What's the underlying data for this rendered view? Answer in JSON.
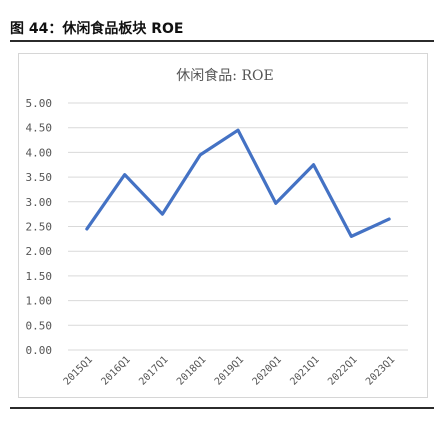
{
  "figure": {
    "label": "图 44：休闲食品板块 ROE"
  },
  "colors": {
    "line": "#4472c4",
    "grid": "#d9d9d9",
    "axis_text": "#555555",
    "rule": "#2b2b2b"
  },
  "chart_data": {
    "type": "line",
    "title": "休闲食品: ROE",
    "xlabel": "",
    "ylabel": "",
    "categories": [
      "2015Q1",
      "2016Q1",
      "2017Q1",
      "2018Q1",
      "2019Q1",
      "2020Q1",
      "2021Q1",
      "2022Q1",
      "2023Q1"
    ],
    "series": [
      {
        "values": [
          2.45,
          3.55,
          2.75,
          3.95,
          4.45,
          2.97,
          3.75,
          2.3,
          2.65
        ]
      }
    ],
    "ylim": [
      0,
      5
    ],
    "yticks": [
      "0.00",
      "0.50",
      "1.00",
      "1.50",
      "2.00",
      "2.50",
      "3.00",
      "3.50",
      "4.00",
      "4.50",
      "5.00"
    ],
    "grid": true,
    "legend": "none"
  }
}
